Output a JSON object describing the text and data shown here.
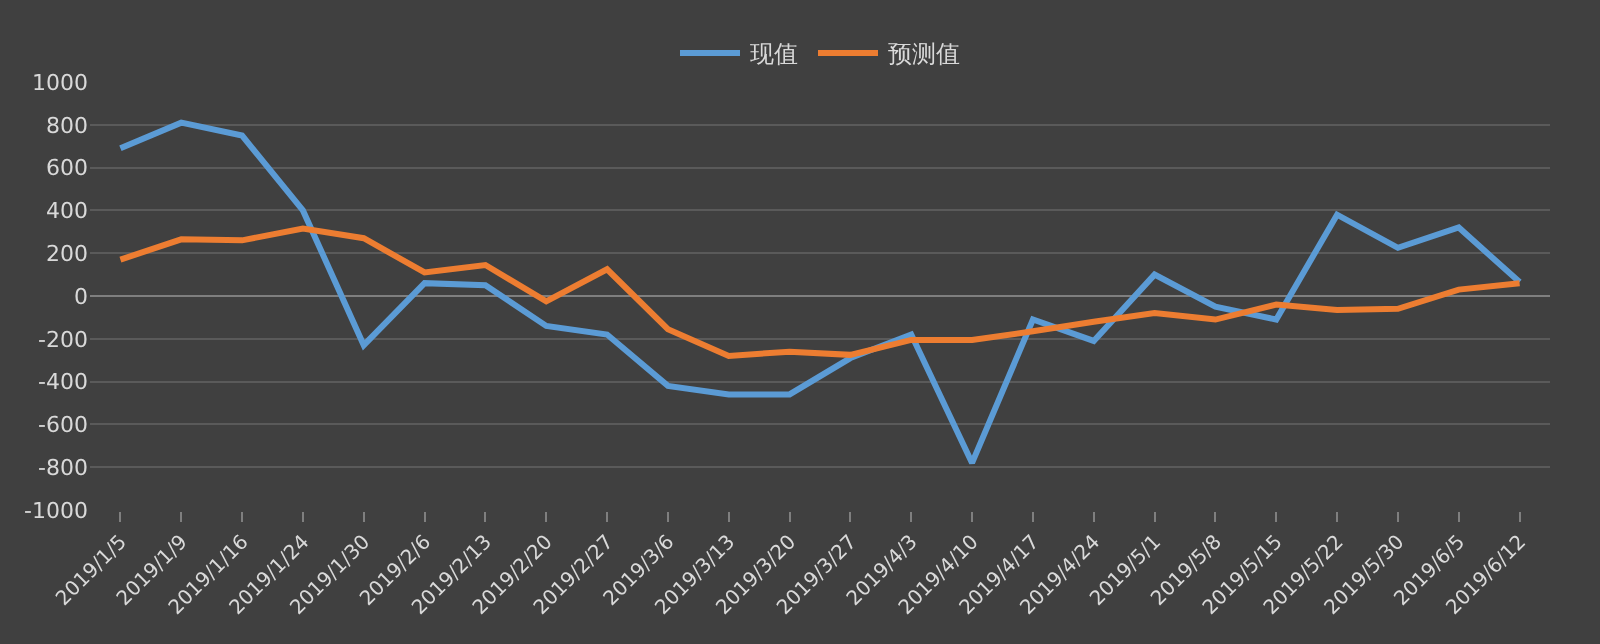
{
  "chart_data": {
    "type": "line",
    "categories": [
      "2019/1/5",
      "2019/1/9",
      "2019/1/16",
      "2019/1/24",
      "2019/1/30",
      "2019/2/6",
      "2019/2/13",
      "2019/2/20",
      "2019/2/27",
      "2019/3/6",
      "2019/3/13",
      "2019/3/20",
      "2019/3/27",
      "2019/4/3",
      "2019/4/10",
      "2019/4/17",
      "2019/4/24",
      "2019/5/1",
      "2019/5/8",
      "2019/5/15",
      "2019/5/22",
      "2019/5/30",
      "2019/6/5",
      "2019/6/12"
    ],
    "series": [
      {
        "name": "现值",
        "color": "#5b9bd5",
        "values": [
          690,
          810,
          750,
          400,
          -230,
          60,
          50,
          -140,
          -180,
          -420,
          -460,
          -460,
          -290,
          -180,
          -780,
          -110,
          -210,
          100,
          -50,
          -110,
          380,
          225,
          320,
          65
        ]
      },
      {
        "name": "预测值",
        "color": "#ed7d31",
        "values": [
          170,
          265,
          260,
          315,
          270,
          110,
          145,
          -25,
          125,
          -155,
          -280,
          -260,
          -275,
          -205,
          -205,
          -165,
          -120,
          -80,
          -110,
          -40,
          -65,
          -60,
          30,
          60
        ]
      }
    ],
    "ylim": [
      -1000,
      1000
    ],
    "yticks": [
      -1000,
      -800,
      -600,
      -400,
      -200,
      0,
      200,
      400,
      600,
      800,
      1000
    ],
    "grid": "y",
    "legend": "top",
    "marker": "none",
    "line_style": "solid"
  }
}
